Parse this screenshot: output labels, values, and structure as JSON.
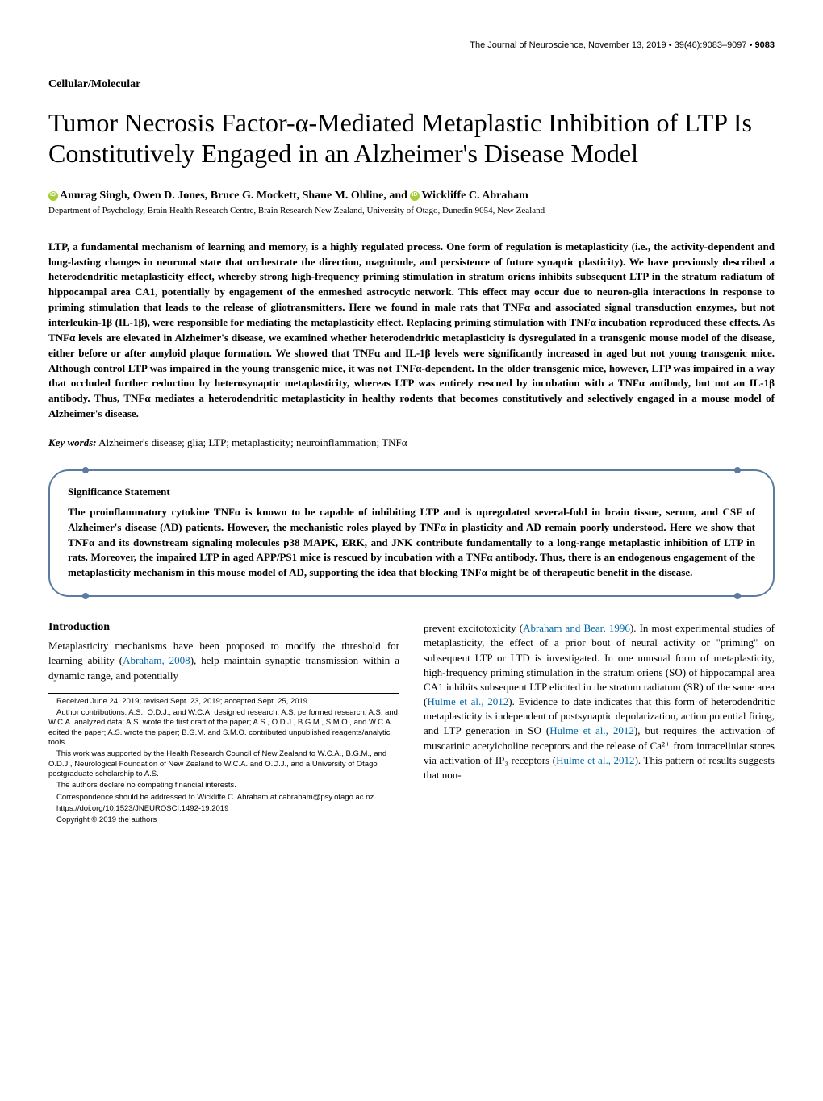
{
  "header": {
    "journal": "The Journal of Neuroscience, November 13, 2019",
    "volume_pages": "39(46):9083–9097",
    "page_number": "9083"
  },
  "section_label": "Cellular/Molecular",
  "title": "Tumor Necrosis Factor-α-Mediated Metaplastic Inhibition of LTP Is Constitutively Engaged in an Alzheimer's Disease Model",
  "authors": "Anurag Singh, Owen D. Jones, Bruce G. Mockett, Shane M. Ohline, and ",
  "last_author": "Wickliffe C. Abraham",
  "affiliation": "Department of Psychology, Brain Health Research Centre, Brain Research New Zealand, University of Otago, Dunedin 9054, New Zealand",
  "abstract": "LTP, a fundamental mechanism of learning and memory, is a highly regulated process. One form of regulation is metaplasticity (i.e., the activity-dependent and long-lasting changes in neuronal state that orchestrate the direction, magnitude, and persistence of future synaptic plasticity). We have previously described a heterodendritic metaplasticity effect, whereby strong high-frequency priming stimulation in stratum oriens inhibits subsequent LTP in the stratum radiatum of hippocampal area CA1, potentially by engagement of the enmeshed astrocytic network. This effect may occur due to neuron-glia interactions in response to priming stimulation that leads to the release of gliotransmitters. Here we found in male rats that TNFα and associated signal transduction enzymes, but not interleukin-1β (IL-1β), were responsible for mediating the metaplasticity effect. Replacing priming stimulation with TNFα incubation reproduced these effects. As TNFα levels are elevated in Alzheimer's disease, we examined whether heterodendritic metaplasticity is dysregulated in a transgenic mouse model of the disease, either before or after amyloid plaque formation. We showed that TNFα and IL-1β levels were significantly increased in aged but not young transgenic mice. Although control LTP was impaired in the young transgenic mice, it was not TNFα-dependent. In the older transgenic mice, however, LTP was impaired in a way that occluded further reduction by heterosynaptic metaplasticity, whereas LTP was entirely rescued by incubation with a TNFα antibody, but not an IL-1β antibody. Thus, TNFα mediates a heterodendritic metaplasticity in healthy rodents that becomes constitutively and selectively engaged in a mouse model of Alzheimer's disease.",
  "keywords": {
    "label": "Key words:",
    "text": " Alzheimer's disease; glia; LTP; metaplasticity; neuroinflammation; TNFα"
  },
  "significance": {
    "title": "Significance Statement",
    "text": "The proinflammatory cytokine TNFα is known to be capable of inhibiting LTP and is upregulated several-fold in brain tissue, serum, and CSF of Alzheimer's disease (AD) patients. However, the mechanistic roles played by TNFα in plasticity and AD remain poorly understood. Here we show that TNFα and its downstream signaling molecules p38 MAPK, ERK, and JNK contribute fundamentally to a long-range metaplastic inhibition of LTP in rats. Moreover, the impaired LTP in aged APP/PS1 mice is rescued by incubation with a TNFα antibody. Thus, there is an endogenous engagement of the metaplasticity mechanism in this mouse model of AD, supporting the idea that blocking TNFα might be of therapeutic benefit in the disease."
  },
  "introduction": {
    "heading": "Introduction",
    "col1_text": "Metaplasticity mechanisms have been proposed to modify the threshold for learning ability (Abraham, 2008), help maintain synaptic transmission within a dynamic range, and potentially",
    "col2_text": "prevent excitotoxicity (Abraham and Bear, 1996). In most experimental studies of metaplasticity, the effect of a prior bout of neural activity or \"priming\" on subsequent LTP or LTD is investigated. In one unusual form of metaplasticity, high-frequency priming stimulation in the stratum oriens (SO) of hippocampal area CA1 inhibits subsequent LTP elicited in the stratum radiatum (SR) of the same area (Hulme et al., 2012). Evidence to date indicates that this form of heterodendritic metaplasticity is independent of postsynaptic depolarization, action potential firing, and LTP generation in SO (Hulme et al., 2012), but requires the activation of muscarinic acetylcholine receptors and the release of Ca²⁺ from intracellular stores via activation of IP₃ receptors (Hulme et al., 2012). This pattern of results suggests that non-"
  },
  "footnotes": {
    "received": "Received June 24, 2019; revised Sept. 23, 2019; accepted Sept. 25, 2019.",
    "contributions": "Author contributions: A.S., O.D.J., and W.C.A. designed research; A.S. performed research; A.S. and W.C.A. analyzed data; A.S. wrote the first draft of the paper; A.S., O.D.J., B.G.M., S.M.O., and W.C.A. edited the paper; A.S. wrote the paper; B.G.M. and S.M.O. contributed unpublished reagents/analytic tools.",
    "funding": "This work was supported by the Health Research Council of New Zealand to W.C.A., B.G.M., and O.D.J., Neurological Foundation of New Zealand to W.C.A. and O.D.J., and a University of Otago postgraduate scholarship to A.S.",
    "competing": "The authors declare no competing financial interests.",
    "correspondence": "Correspondence should be addressed to Wickliffe C. Abraham at cabraham@psy.otago.ac.nz.",
    "doi": "https://doi.org/10.1523/JNEUROSCI.1492-19.2019",
    "copyright": "Copyright © 2019 the authors"
  }
}
